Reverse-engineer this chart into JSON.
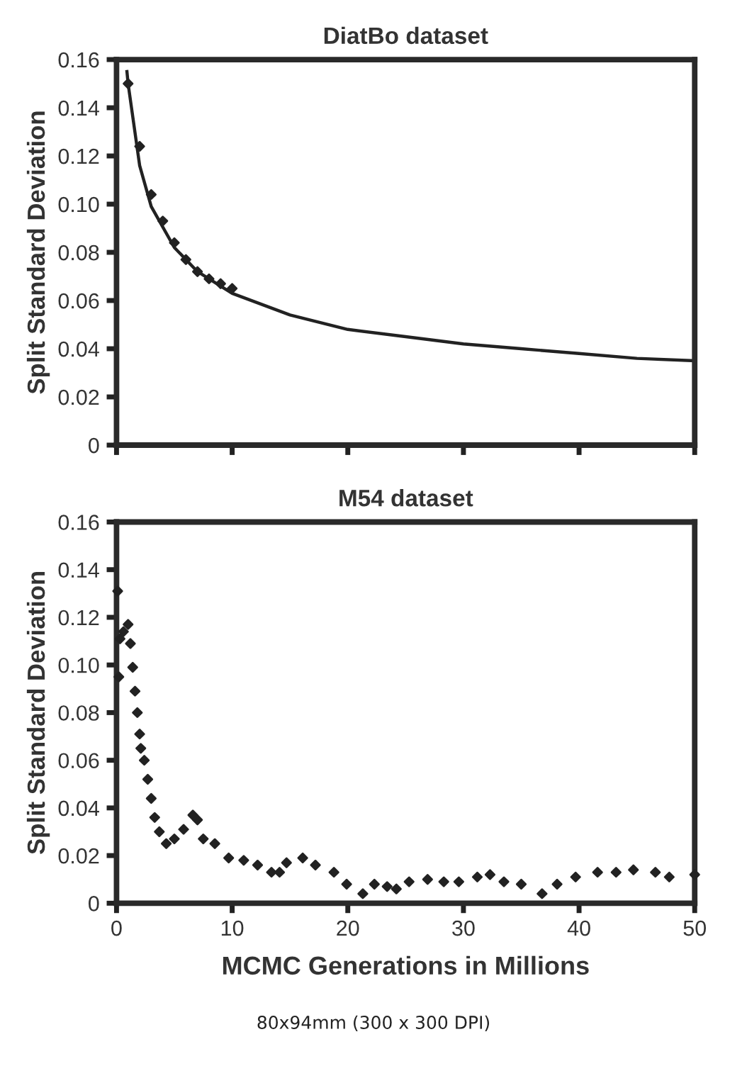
{
  "chart_data": [
    {
      "type": "scatter",
      "title": "DiatBo dataset",
      "ylabel": "Split Standard Deviation",
      "xlim": [
        0,
        50
      ],
      "ylim": [
        0,
        0.16
      ],
      "xticks": [
        0,
        10,
        20,
        30,
        40,
        50
      ],
      "yticks": [
        0,
        {
          "value": 0.02,
          "label": "0.02"
        },
        {
          "value": 0.04,
          "label": "0.04"
        },
        {
          "value": 0.06,
          "label": "0.06"
        },
        {
          "value": 0.08,
          "label": "0.08"
        },
        {
          "value": 0.1,
          "label": "0.10"
        },
        {
          "value": 0.12,
          "label": "0.12"
        },
        {
          "value": 0.14,
          "label": "0.14"
        },
        {
          "value": 0.16,
          "label": "0.16"
        }
      ],
      "tick_labels": "y",
      "grid": false,
      "legend": false,
      "series": [
        {
          "color": "#222222",
          "marker": "diamond",
          "x": [
            1,
            2,
            3,
            4,
            5,
            6,
            7,
            8,
            9,
            10
          ],
          "values": [
            0.15,
            0.124,
            0.104,
            0.093,
            0.084,
            0.077,
            0.072,
            0.069,
            0.067,
            0.065
          ]
        },
        {
          "type": "line",
          "color": "#222222",
          "marker": "none",
          "line_style": "solid",
          "x": [
            0.9,
            1,
            2,
            3,
            5,
            7,
            10,
            15,
            20,
            25,
            30,
            35,
            40,
            45,
            50
          ],
          "values": [
            0.155,
            0.15,
            0.116,
            0.099,
            0.082,
            0.072,
            0.063,
            0.054,
            0.048,
            0.045,
            0.042,
            0.04,
            0.038,
            0.036,
            0.035
          ]
        }
      ]
    },
    {
      "type": "scatter",
      "title": "M54 dataset",
      "ylabel": "Split Standard Deviation",
      "xlabel": "MCMC Generations in Millions",
      "xlim": [
        0,
        50
      ],
      "ylim": [
        0,
        0.16
      ],
      "xticks": [
        0,
        10,
        20,
        30,
        40,
        50
      ],
      "yticks": [
        0,
        {
          "value": 0.02,
          "label": "0.02"
        },
        {
          "value": 0.04,
          "label": "0.04"
        },
        {
          "value": 0.06,
          "label": "0.06"
        },
        {
          "value": 0.08,
          "label": "0.08"
        },
        {
          "value": 0.1,
          "label": "0.10"
        },
        {
          "value": 0.12,
          "label": "0.12"
        },
        {
          "value": 0.14,
          "label": "0.14"
        },
        {
          "value": 0.16,
          "label": "0.16"
        }
      ],
      "grid": false,
      "legend": false,
      "annotations": [
        "80x94mm (300 x 300 DPI)"
      ],
      "series": [
        {
          "color": "#222222",
          "marker": "diamond",
          "x": [
            0.1,
            0.2,
            0.3,
            0.6,
            1.0,
            1.2,
            1.4,
            1.6,
            1.8,
            2.0,
            2.1,
            2.4,
            2.7,
            3.0,
            3.3,
            3.7,
            4.3,
            5.0,
            5.8,
            6.6,
            7.0,
            7.5,
            8.5,
            9.7,
            11,
            12.2,
            13.4,
            14.1,
            14.7,
            16.1,
            17.2,
            18.8,
            19.9,
            21.3,
            22.3,
            23.4,
            24.2,
            25.3,
            26.9,
            28.3,
            29.6,
            31.2,
            32.3,
            33.5,
            35.0,
            36.8,
            38.1,
            39.7,
            41.6,
            43.2,
            44.7,
            46.6,
            47.8,
            50
          ],
          "values": [
            0.131,
            0.095,
            0.111,
            0.114,
            0.117,
            0.109,
            0.099,
            0.089,
            0.08,
            0.071,
            0.065,
            0.06,
            0.052,
            0.044,
            0.036,
            0.03,
            0.025,
            0.027,
            0.031,
            0.037,
            0.035,
            0.027,
            0.025,
            0.019,
            0.018,
            0.016,
            0.013,
            0.013,
            0.017,
            0.019,
            0.016,
            0.013,
            0.008,
            0.004,
            0.008,
            0.007,
            0.006,
            0.009,
            0.01,
            0.009,
            0.009,
            0.011,
            0.012,
            0.009,
            0.008,
            0.004,
            0.008,
            0.011,
            0.013,
            0.013,
            0.014,
            0.013,
            0.011,
            0.012
          ]
        }
      ]
    }
  ]
}
